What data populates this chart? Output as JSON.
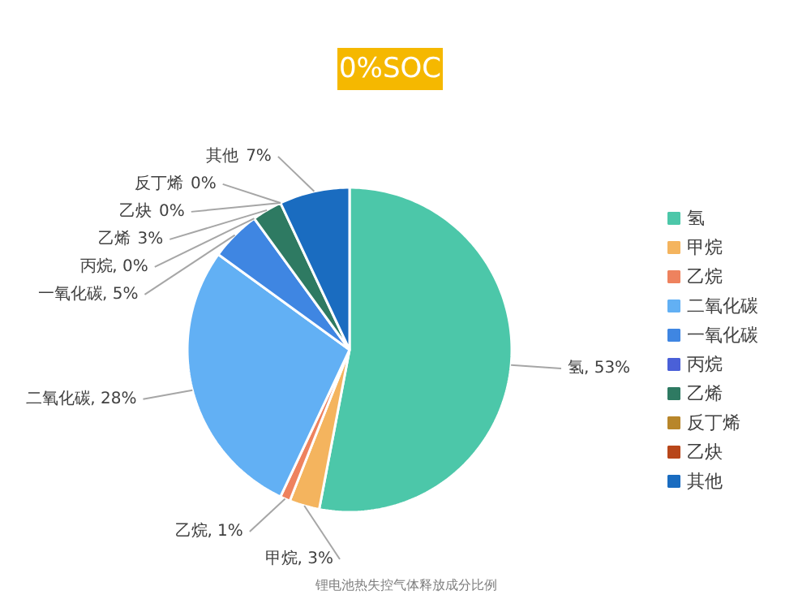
{
  "chart_data": {
    "type": "pie",
    "title": "0%SOC",
    "categories": [
      "氢",
      "甲烷",
      "乙烷",
      "二氧化碳",
      "一氧化碳",
      "丙烷",
      "乙烯",
      "反丁烯",
      "乙炔",
      "其他"
    ],
    "values": [
      53,
      3,
      1,
      28,
      5,
      0,
      3,
      0,
      0,
      7
    ],
    "colors": [
      "#4cc7a9",
      "#f4b45e",
      "#ee825e",
      "#62b0f4",
      "#3f86e2",
      "#4a60d8",
      "#2e7a62",
      "#b8862a",
      "#b8461a",
      "#1a6cc0"
    ],
    "legend": "right",
    "value_labels": [
      ", 53%",
      ", 3%",
      ", 1%",
      ", 28%",
      ", 5%",
      ", 0%",
      "3%",
      "0%",
      "0%",
      "7%"
    ],
    "annotations": [
      "锂电池热失控气体释放成分比例"
    ]
  }
}
